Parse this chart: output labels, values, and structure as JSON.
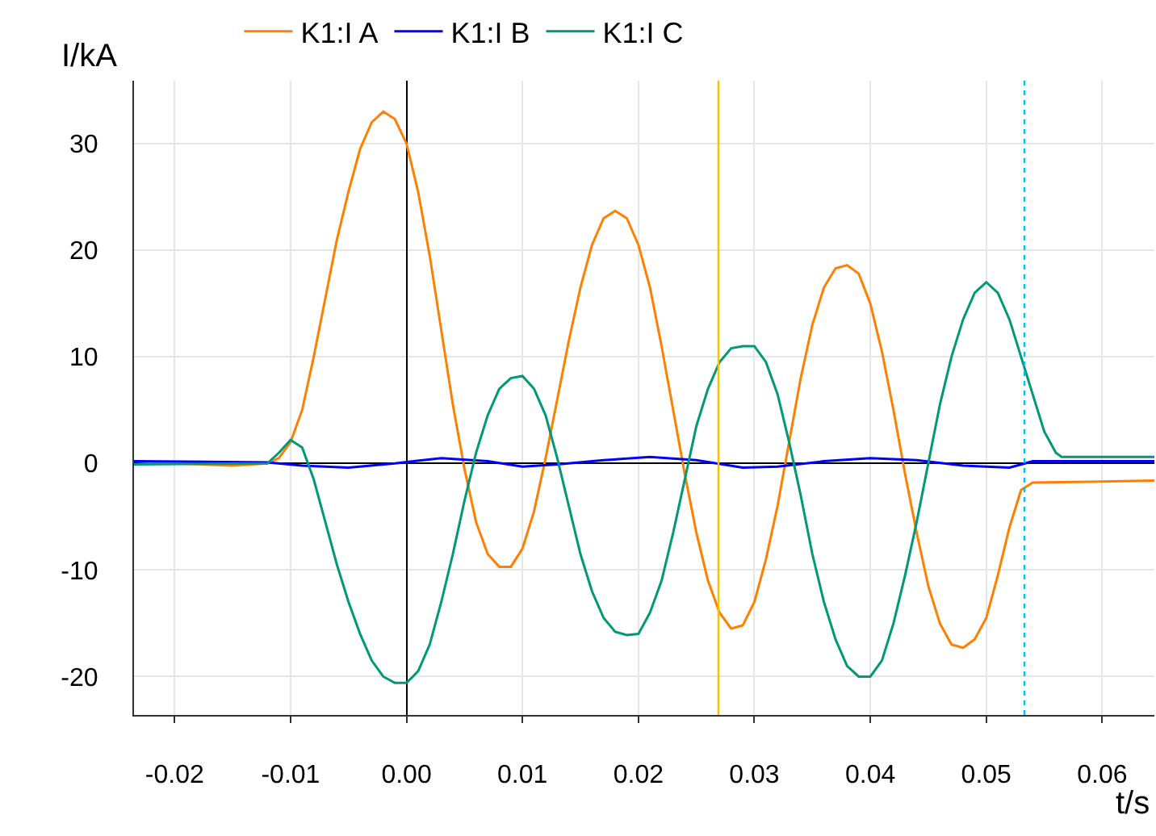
{
  "chart_data": {
    "type": "line",
    "xlabel": "t/s",
    "ylabel": "I/kA",
    "legend": "top",
    "grid": true,
    "marker": "none",
    "line_style": "solid",
    "xlim": [
      -0.0235,
      0.0645
    ],
    "xticks": [
      {
        "value": -0.02,
        "label": "-0.02"
      },
      {
        "value": -0.01,
        "label": "-0.01"
      },
      {
        "value": 0,
        "label": "0.00"
      },
      {
        "value": 0.01,
        "label": "0.01"
      },
      {
        "value": 0.02,
        "label": "0.02"
      },
      {
        "value": 0.03,
        "label": "0.03"
      },
      {
        "value": 0.04,
        "label": "0.04"
      },
      {
        "value": 0.05,
        "label": "0.05"
      },
      {
        "value": 0.06,
        "label": "0.06"
      }
    ],
    "ylim": [
      -23.6,
      35.9
    ],
    "yticks": [
      -20,
      -10,
      0,
      10,
      20,
      30
    ],
    "ref_lines": [
      {
        "axis": "x",
        "value": 0.0269,
        "color": "#ffc000",
        "line_style": "solid"
      },
      {
        "axis": "x",
        "value": 0.0533,
        "color": "#00bfff",
        "line_style": "dotted"
      }
    ],
    "series": [
      {
        "name": "K1:I A",
        "color": "#ff8000",
        "x": [
          -0.0235,
          -0.02,
          -0.015,
          -0.012,
          -0.011,
          -0.01,
          -0.009,
          -0.008,
          -0.007,
          -0.006,
          -0.005,
          -0.004,
          -0.003,
          -0.002,
          -0.001,
          0,
          0.001,
          0.002,
          0.003,
          0.004,
          0.005,
          0.006,
          0.007,
          0.008,
          0.009,
          0.01,
          0.011,
          0.012,
          0.013,
          0.014,
          0.015,
          0.016,
          0.017,
          0.018,
          0.019,
          0.02,
          0.021,
          0.022,
          0.023,
          0.024,
          0.025,
          0.026,
          0.027,
          0.028,
          0.029,
          0.03,
          0.031,
          0.032,
          0.033,
          0.034,
          0.035,
          0.036,
          0.037,
          0.038,
          0.039,
          0.04,
          0.041,
          0.042,
          0.043,
          0.044,
          0.045,
          0.046,
          0.047,
          0.048,
          0.049,
          0.05,
          0.051,
          0.052,
          0.053,
          0.054,
          0.06,
          0.0645
        ],
        "values": [
          0.2,
          0,
          -0.2,
          0,
          0.5,
          2,
          5,
          10,
          15.5,
          21,
          25.5,
          29.5,
          32,
          33,
          32.3,
          30,
          25.5,
          19.5,
          12.5,
          5.5,
          -0.5,
          -5.5,
          -8.5,
          -9.7,
          -9.7,
          -8,
          -4.5,
          0.5,
          6,
          11.5,
          16.5,
          20.5,
          23,
          23.7,
          23,
          20.5,
          16.5,
          11,
          5,
          -1,
          -6.5,
          -11,
          -14,
          -15.5,
          -15.2,
          -13,
          -9,
          -4,
          2,
          8,
          13,
          16.5,
          18.3,
          18.6,
          17.8,
          15,
          10.5,
          5,
          -1,
          -6.5,
          -11.5,
          -15,
          -17,
          -17.3,
          -16.5,
          -14.5,
          -10.5,
          -6,
          -2.5,
          -1.8,
          -1.7,
          -1.6
        ]
      },
      {
        "name": "K1:I B",
        "color": "#0000ff",
        "x": [
          -0.0235,
          -0.012,
          -0.009,
          -0.005,
          -0.001,
          0.003,
          0.007,
          0.01,
          0.013,
          0.017,
          0.021,
          0.025,
          0.029,
          0.032,
          0.036,
          0.04,
          0.044,
          0.048,
          0.052,
          0.054,
          0.0645
        ],
        "values": [
          0.2,
          0.1,
          -0.2,
          -0.4,
          0,
          0.5,
          0.2,
          -0.3,
          -0.1,
          0.3,
          0.6,
          0.3,
          -0.4,
          -0.3,
          0.2,
          0.5,
          0.3,
          -0.2,
          -0.4,
          0.2,
          0.2
        ]
      },
      {
        "name": "K1:I C",
        "color": "#009977",
        "x": [
          -0.0235,
          -0.012,
          -0.011,
          -0.01,
          -0.009,
          -0.008,
          -0.007,
          -0.006,
          -0.005,
          -0.004,
          -0.003,
          -0.002,
          -0.001,
          0,
          0.001,
          0.002,
          0.003,
          0.004,
          0.005,
          0.006,
          0.007,
          0.008,
          0.009,
          0.01,
          0.011,
          0.012,
          0.013,
          0.014,
          0.015,
          0.016,
          0.017,
          0.018,
          0.019,
          0.02,
          0.021,
          0.022,
          0.023,
          0.024,
          0.025,
          0.026,
          0.027,
          0.028,
          0.029,
          0.03,
          0.031,
          0.032,
          0.033,
          0.034,
          0.035,
          0.036,
          0.037,
          0.038,
          0.039,
          0.04,
          0.041,
          0.042,
          0.043,
          0.044,
          0.045,
          0.046,
          0.047,
          0.048,
          0.049,
          0.05,
          0.051,
          0.052,
          0.053,
          0.054,
          0.055,
          0.056,
          0.0565,
          0.0645
        ],
        "values": [
          -0.1,
          0,
          1,
          2.2,
          1.5,
          -1.5,
          -5.5,
          -9.5,
          -13,
          -16,
          -18.5,
          -20,
          -20.6,
          -20.6,
          -19.5,
          -17,
          -13,
          -8.5,
          -3.5,
          1,
          4.5,
          7,
          8,
          8.2,
          7,
          4.5,
          0.5,
          -4,
          -8.5,
          -12,
          -14.5,
          -15.8,
          -16.1,
          -16,
          -14,
          -11,
          -6.5,
          -1.5,
          3.5,
          7,
          9.5,
          10.8,
          11,
          11,
          9.5,
          6.5,
          2,
          -3,
          -8.5,
          -13,
          -16.5,
          -19,
          -20,
          -20,
          -18.5,
          -15,
          -10.5,
          -5.5,
          0,
          5.5,
          10,
          13.5,
          16,
          17,
          16,
          13.5,
          10,
          6.5,
          3,
          1,
          0.6,
          0.6
        ]
      }
    ]
  }
}
